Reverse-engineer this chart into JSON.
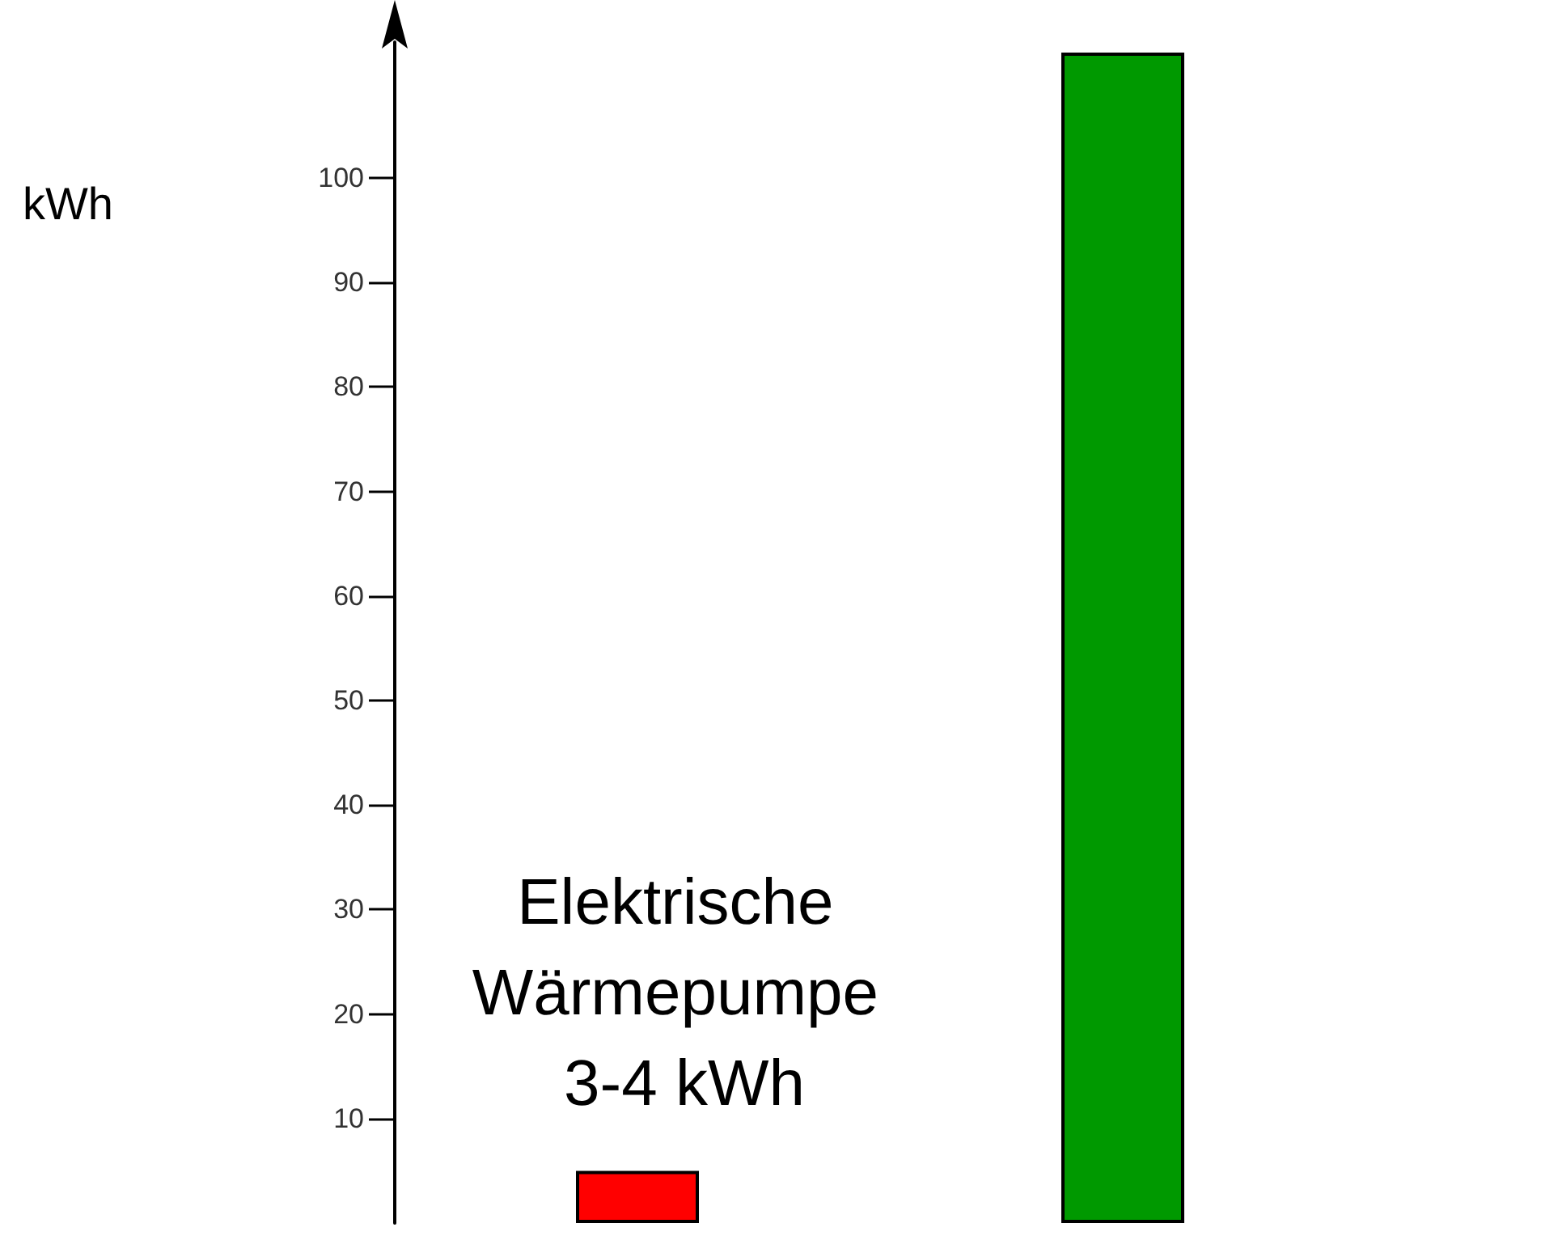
{
  "chart_data": {
    "type": "bar",
    "categories": [
      null,
      null
    ],
    "values": [
      5,
      112
    ],
    "colors": [
      "#ff0000",
      "#009900"
    ],
    "ylim": [
      0,
      113
    ],
    "yticks": [
      10,
      20,
      30,
      40,
      50,
      60,
      70,
      80,
      90,
      100
    ],
    "grid": false,
    "annotations": [
      "kWh",
      "Elektrische Wärmepumpe 3-4 kWh"
    ]
  }
}
